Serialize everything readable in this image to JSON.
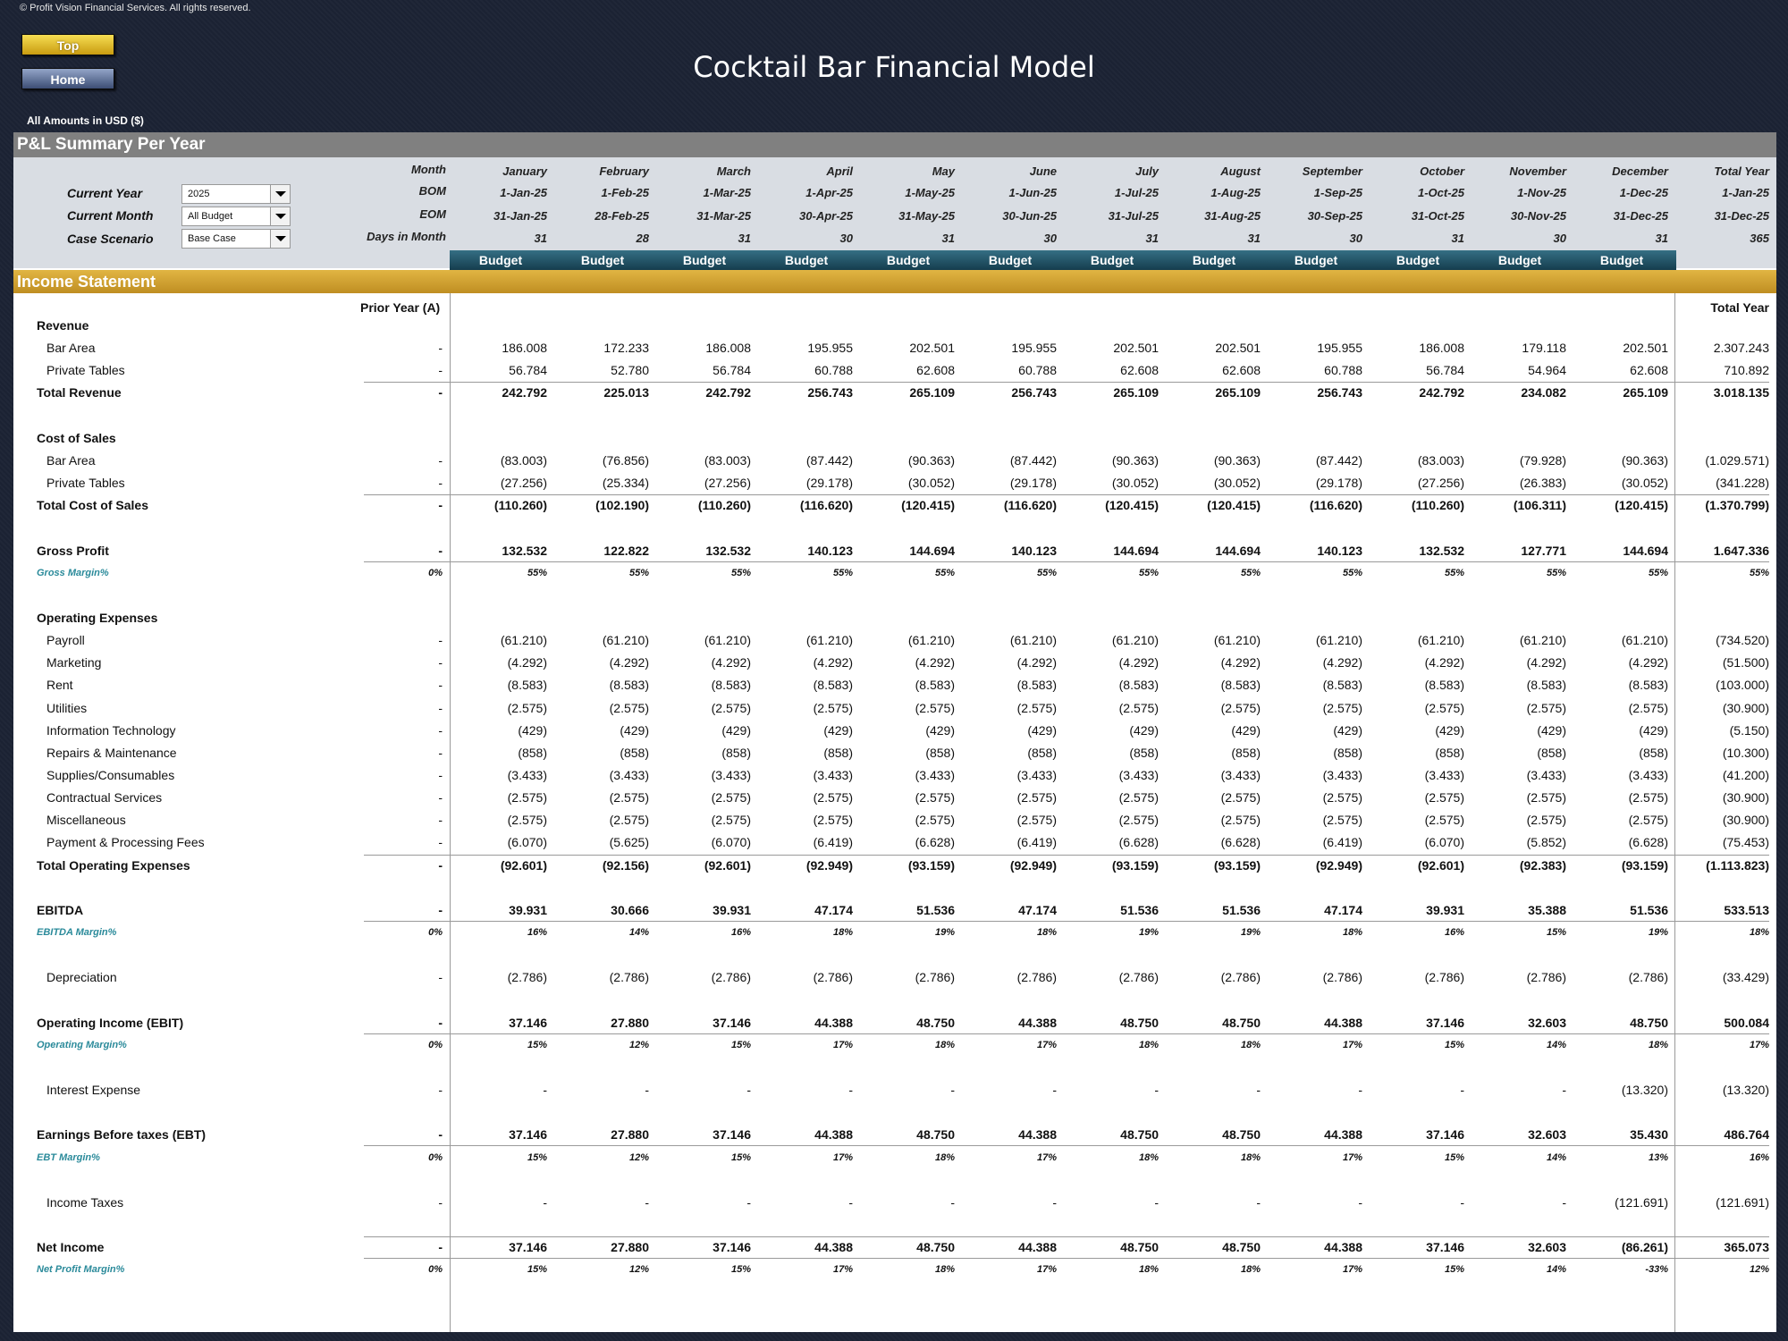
{
  "copyright": "© Profit Vision Financial Services. All rights reserved.",
  "nav": {
    "top_label": "Top",
    "home_label": "Home"
  },
  "title": "Cocktail Bar Financial Model",
  "amounts_note": "All Amounts in  USD ($)",
  "section_title": "P&L Summary Per Year",
  "income_title": "Income Statement",
  "controls": {
    "current_year_label": "Current Year",
    "current_year_value": "2025",
    "current_month_label": "Current Month",
    "current_month_value": "All Budget",
    "case_label": "Case Scenario",
    "case_value": "Base Case"
  },
  "header_labels": {
    "month": "Month",
    "bom": "BOM",
    "eom": "EOM",
    "days": "Days in Month",
    "prior_year": "Prior Year (A)",
    "total_year_bottom": "Total Year"
  },
  "months": [
    "January",
    "February",
    "March",
    "April",
    "May",
    "June",
    "July",
    "August",
    "September",
    "October",
    "November",
    "December",
    "Total Year"
  ],
  "bom": [
    "1-Jan-25",
    "1-Feb-25",
    "1-Mar-25",
    "1-Apr-25",
    "1-May-25",
    "1-Jun-25",
    "1-Jul-25",
    "1-Aug-25",
    "1-Sep-25",
    "1-Oct-25",
    "1-Nov-25",
    "1-Dec-25",
    "1-Jan-25"
  ],
  "eom": [
    "31-Jan-25",
    "28-Feb-25",
    "31-Mar-25",
    "30-Apr-25",
    "31-May-25",
    "30-Jun-25",
    "31-Jul-25",
    "31-Aug-25",
    "30-Sep-25",
    "31-Oct-25",
    "30-Nov-25",
    "31-Dec-25",
    "31-Dec-25"
  ],
  "days": [
    "31",
    "28",
    "31",
    "30",
    "31",
    "30",
    "31",
    "31",
    "30",
    "31",
    "30",
    "31",
    "365"
  ],
  "budget_labels": [
    "Budget",
    "Budget",
    "Budget",
    "Budget",
    "Budget",
    "Budget",
    "Budget",
    "Budget",
    "Budget",
    "Budget",
    "Budget",
    "Budget"
  ],
  "rows": [
    {
      "label": "Revenue",
      "style": "bold",
      "indent": false,
      "prior": "",
      "values": []
    },
    {
      "label": "Bar Area",
      "style": "normal",
      "indent": true,
      "prior": "-",
      "values": [
        "186.008",
        "172.233",
        "186.008",
        "195.955",
        "202.501",
        "195.955",
        "202.501",
        "202.501",
        "195.955",
        "186.008",
        "179.118",
        "202.501",
        "2.307.243"
      ]
    },
    {
      "label": "Private Tables",
      "style": "normal",
      "indent": true,
      "prior": "-",
      "values": [
        "56.784",
        "52.780",
        "56.784",
        "60.788",
        "62.608",
        "60.788",
        "62.608",
        "62.608",
        "60.788",
        "56.784",
        "54.964",
        "62.608",
        "710.892"
      ]
    },
    {
      "label": "Total Revenue",
      "style": "bold",
      "indent": false,
      "prior": "-",
      "values": [
        "242.792",
        "225.013",
        "242.792",
        "256.743",
        "265.109",
        "256.743",
        "265.109",
        "265.109",
        "256.743",
        "242.792",
        "234.082",
        "265.109",
        "3.018.135"
      ],
      "line": true
    },
    {
      "label": "",
      "style": "normal",
      "indent": false,
      "prior": "",
      "values": []
    },
    {
      "label": "Cost of Sales",
      "style": "bold",
      "indent": false,
      "prior": "",
      "values": []
    },
    {
      "label": "Bar Area",
      "style": "normal",
      "indent": true,
      "prior": "-",
      "values": [
        "(83.003)",
        "(76.856)",
        "(83.003)",
        "(87.442)",
        "(90.363)",
        "(87.442)",
        "(90.363)",
        "(90.363)",
        "(87.442)",
        "(83.003)",
        "(79.928)",
        "(90.363)",
        "(1.029.571)"
      ]
    },
    {
      "label": "Private Tables",
      "style": "normal",
      "indent": true,
      "prior": "-",
      "values": [
        "(27.256)",
        "(25.334)",
        "(27.256)",
        "(29.178)",
        "(30.052)",
        "(29.178)",
        "(30.052)",
        "(30.052)",
        "(29.178)",
        "(27.256)",
        "(26.383)",
        "(30.052)",
        "(341.228)"
      ]
    },
    {
      "label": "Total Cost of Sales",
      "style": "bold",
      "indent": false,
      "prior": "-",
      "values": [
        "(110.260)",
        "(102.190)",
        "(110.260)",
        "(116.620)",
        "(120.415)",
        "(116.620)",
        "(120.415)",
        "(120.415)",
        "(116.620)",
        "(110.260)",
        "(106.311)",
        "(120.415)",
        "(1.370.799)"
      ],
      "line": true
    },
    {
      "label": "",
      "style": "normal",
      "indent": false,
      "prior": "",
      "values": []
    },
    {
      "label": "Gross Profit",
      "style": "bold",
      "indent": false,
      "prior": "-",
      "values": [
        "132.532",
        "122.822",
        "132.532",
        "140.123",
        "144.694",
        "140.123",
        "144.694",
        "144.694",
        "140.123",
        "132.532",
        "127.771",
        "144.694",
        "1.647.336"
      ],
      "below": true
    },
    {
      "label": "Gross Margin%",
      "style": "margin",
      "indent": false,
      "prior": "0%",
      "values": [
        "55%",
        "55%",
        "55%",
        "55%",
        "55%",
        "55%",
        "55%",
        "55%",
        "55%",
        "55%",
        "55%",
        "55%",
        "55%"
      ]
    },
    {
      "label": "",
      "style": "normal",
      "indent": false,
      "prior": "",
      "values": []
    },
    {
      "label": "Operating Expenses",
      "style": "bold",
      "indent": false,
      "prior": "",
      "values": []
    },
    {
      "label": "Payroll",
      "style": "normal",
      "indent": true,
      "prior": "-",
      "values": [
        "(61.210)",
        "(61.210)",
        "(61.210)",
        "(61.210)",
        "(61.210)",
        "(61.210)",
        "(61.210)",
        "(61.210)",
        "(61.210)",
        "(61.210)",
        "(61.210)",
        "(61.210)",
        "(734.520)"
      ]
    },
    {
      "label": "Marketing",
      "style": "normal",
      "indent": true,
      "prior": "-",
      "values": [
        "(4.292)",
        "(4.292)",
        "(4.292)",
        "(4.292)",
        "(4.292)",
        "(4.292)",
        "(4.292)",
        "(4.292)",
        "(4.292)",
        "(4.292)",
        "(4.292)",
        "(4.292)",
        "(51.500)"
      ]
    },
    {
      "label": "Rent",
      "style": "normal",
      "indent": true,
      "prior": "-",
      "values": [
        "(8.583)",
        "(8.583)",
        "(8.583)",
        "(8.583)",
        "(8.583)",
        "(8.583)",
        "(8.583)",
        "(8.583)",
        "(8.583)",
        "(8.583)",
        "(8.583)",
        "(8.583)",
        "(103.000)"
      ]
    },
    {
      "label": "Utilities",
      "style": "normal",
      "indent": true,
      "prior": "-",
      "values": [
        "(2.575)",
        "(2.575)",
        "(2.575)",
        "(2.575)",
        "(2.575)",
        "(2.575)",
        "(2.575)",
        "(2.575)",
        "(2.575)",
        "(2.575)",
        "(2.575)",
        "(2.575)",
        "(30.900)"
      ]
    },
    {
      "label": "Information Technology",
      "style": "normal",
      "indent": true,
      "prior": "-",
      "values": [
        "(429)",
        "(429)",
        "(429)",
        "(429)",
        "(429)",
        "(429)",
        "(429)",
        "(429)",
        "(429)",
        "(429)",
        "(429)",
        "(429)",
        "(5.150)"
      ]
    },
    {
      "label": "Repairs & Maintenance",
      "style": "normal",
      "indent": true,
      "prior": "-",
      "values": [
        "(858)",
        "(858)",
        "(858)",
        "(858)",
        "(858)",
        "(858)",
        "(858)",
        "(858)",
        "(858)",
        "(858)",
        "(858)",
        "(858)",
        "(10.300)"
      ]
    },
    {
      "label": "Supplies/Consumables",
      "style": "normal",
      "indent": true,
      "prior": "-",
      "values": [
        "(3.433)",
        "(3.433)",
        "(3.433)",
        "(3.433)",
        "(3.433)",
        "(3.433)",
        "(3.433)",
        "(3.433)",
        "(3.433)",
        "(3.433)",
        "(3.433)",
        "(3.433)",
        "(41.200)"
      ]
    },
    {
      "label": "Contractual Services",
      "style": "normal",
      "indent": true,
      "prior": "-",
      "values": [
        "(2.575)",
        "(2.575)",
        "(2.575)",
        "(2.575)",
        "(2.575)",
        "(2.575)",
        "(2.575)",
        "(2.575)",
        "(2.575)",
        "(2.575)",
        "(2.575)",
        "(2.575)",
        "(30.900)"
      ]
    },
    {
      "label": "Miscellaneous",
      "style": "normal",
      "indent": true,
      "prior": "-",
      "values": [
        "(2.575)",
        "(2.575)",
        "(2.575)",
        "(2.575)",
        "(2.575)",
        "(2.575)",
        "(2.575)",
        "(2.575)",
        "(2.575)",
        "(2.575)",
        "(2.575)",
        "(2.575)",
        "(30.900)"
      ]
    },
    {
      "label": "Payment & Processing Fees",
      "style": "normal",
      "indent": true,
      "prior": "-",
      "values": [
        "(6.070)",
        "(5.625)",
        "(6.070)",
        "(6.419)",
        "(6.628)",
        "(6.419)",
        "(6.628)",
        "(6.628)",
        "(6.419)",
        "(6.070)",
        "(5.852)",
        "(6.628)",
        "(75.453)"
      ]
    },
    {
      "label": "Total Operating Expenses",
      "style": "bold",
      "indent": false,
      "prior": "-",
      "values": [
        "(92.601)",
        "(92.156)",
        "(92.601)",
        "(92.949)",
        "(93.159)",
        "(92.949)",
        "(93.159)",
        "(93.159)",
        "(92.949)",
        "(92.601)",
        "(92.383)",
        "(93.159)",
        "(1.113.823)"
      ],
      "line": true
    },
    {
      "label": "",
      "style": "normal",
      "indent": false,
      "prior": "",
      "values": []
    },
    {
      "label": "EBITDA",
      "style": "bold",
      "indent": false,
      "prior": "-",
      "values": [
        "39.931",
        "30.666",
        "39.931",
        "47.174",
        "51.536",
        "47.174",
        "51.536",
        "51.536",
        "47.174",
        "39.931",
        "35.388",
        "51.536",
        "533.513"
      ],
      "below": true
    },
    {
      "label": "EBITDA Margin%",
      "style": "margin",
      "indent": false,
      "prior": "0%",
      "values": [
        "16%",
        "14%",
        "16%",
        "18%",
        "19%",
        "18%",
        "19%",
        "19%",
        "18%",
        "16%",
        "15%",
        "19%",
        "18%"
      ]
    },
    {
      "label": "",
      "style": "normal",
      "indent": false,
      "prior": "",
      "values": []
    },
    {
      "label": "Depreciation",
      "style": "normal",
      "indent": true,
      "prior": "-",
      "values": [
        "(2.786)",
        "(2.786)",
        "(2.786)",
        "(2.786)",
        "(2.786)",
        "(2.786)",
        "(2.786)",
        "(2.786)",
        "(2.786)",
        "(2.786)",
        "(2.786)",
        "(2.786)",
        "(33.429)"
      ]
    },
    {
      "label": "",
      "style": "normal",
      "indent": false,
      "prior": "",
      "values": []
    },
    {
      "label": "Operating Income (EBIT)",
      "style": "bold",
      "indent": false,
      "prior": "-",
      "values": [
        "37.146",
        "27.880",
        "37.146",
        "44.388",
        "48.750",
        "44.388",
        "48.750",
        "48.750",
        "44.388",
        "37.146",
        "32.603",
        "48.750",
        "500.084"
      ],
      "below": true
    },
    {
      "label": "Operating Margin%",
      "style": "margin",
      "indent": false,
      "prior": "0%",
      "values": [
        "15%",
        "12%",
        "15%",
        "17%",
        "18%",
        "17%",
        "18%",
        "18%",
        "17%",
        "15%",
        "14%",
        "18%",
        "17%"
      ]
    },
    {
      "label": "",
      "style": "normal",
      "indent": false,
      "prior": "",
      "values": []
    },
    {
      "label": "Interest Expense",
      "style": "normal",
      "indent": true,
      "prior": "-",
      "values": [
        "-",
        "-",
        "-",
        "-",
        "-",
        "-",
        "-",
        "-",
        "-",
        "-",
        "-",
        "(13.320)",
        "(13.320)"
      ]
    },
    {
      "label": "",
      "style": "normal",
      "indent": false,
      "prior": "",
      "values": []
    },
    {
      "label": "Earnings Before taxes (EBT)",
      "style": "bold",
      "indent": false,
      "prior": "-",
      "values": [
        "37.146",
        "27.880",
        "37.146",
        "44.388",
        "48.750",
        "44.388",
        "48.750",
        "48.750",
        "44.388",
        "37.146",
        "32.603",
        "35.430",
        "486.764"
      ],
      "below": true
    },
    {
      "label": "EBT Margin%",
      "style": "margin",
      "indent": false,
      "prior": "0%",
      "values": [
        "15%",
        "12%",
        "15%",
        "17%",
        "18%",
        "17%",
        "18%",
        "18%",
        "17%",
        "15%",
        "14%",
        "13%",
        "16%"
      ]
    },
    {
      "label": "",
      "style": "normal",
      "indent": false,
      "prior": "",
      "values": []
    },
    {
      "label": "Income Taxes",
      "style": "normal",
      "indent": true,
      "prior": "-",
      "values": [
        "-",
        "-",
        "-",
        "-",
        "-",
        "-",
        "-",
        "-",
        "-",
        "-",
        "-",
        "(121.691)",
        "(121.691)"
      ]
    },
    {
      "label": "",
      "style": "normal",
      "indent": false,
      "prior": "",
      "values": []
    },
    {
      "label": "Net Income",
      "style": "bold",
      "indent": false,
      "prior": "-",
      "values": [
        "37.146",
        "27.880",
        "37.146",
        "44.388",
        "48.750",
        "44.388",
        "48.750",
        "48.750",
        "44.388",
        "37.146",
        "32.603",
        "(86.261)",
        "365.073"
      ],
      "line": true,
      "below": true
    },
    {
      "label": "Net Profit Margin%",
      "style": "margin",
      "indent": false,
      "prior": "0%",
      "values": [
        "15%",
        "12%",
        "15%",
        "17%",
        "18%",
        "17%",
        "18%",
        "18%",
        "17%",
        "15%",
        "14%",
        "-33%",
        "12%"
      ]
    }
  ]
}
